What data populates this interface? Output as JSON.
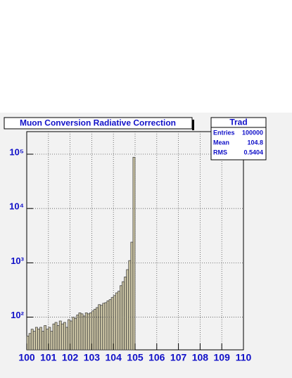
{
  "chart_data": {
    "type": "histogram",
    "title": "Muon Conversion Radiative Correction",
    "bins": [
      100.0,
      100.1,
      100.2,
      100.3,
      100.4,
      100.5,
      100.6,
      100.7,
      100.8,
      100.9,
      101.0,
      101.1,
      101.2,
      101.3,
      101.4,
      101.5,
      101.6,
      101.7,
      101.8,
      101.9,
      102.0,
      102.1,
      102.2,
      102.3,
      102.4,
      102.5,
      102.6,
      102.7,
      102.8,
      102.9,
      103.0,
      103.1,
      103.2,
      103.3,
      103.4,
      103.5,
      103.6,
      103.7,
      103.8,
      103.9,
      104.0,
      104.1,
      104.2,
      104.3,
      104.4,
      104.5,
      104.6,
      104.7,
      104.8,
      104.9,
      105.0
    ],
    "counts": [
      45,
      50,
      60,
      55,
      65,
      60,
      65,
      55,
      70,
      60,
      65,
      55,
      75,
      80,
      70,
      85,
      75,
      80,
      65,
      90,
      85,
      100,
      95,
      110,
      120,
      115,
      105,
      120,
      115,
      120,
      130,
      140,
      150,
      170,
      165,
      180,
      185,
      200,
      210,
      230,
      250,
      280,
      300,
      380,
      450,
      550,
      750,
      1100,
      2400,
      88000
    ],
    "color": "#cdc6a6",
    "xlim": [
      100,
      110
    ],
    "xticks": [
      100,
      101,
      102,
      103,
      104,
      105,
      106,
      107,
      108,
      109,
      110
    ],
    "ylim": [
      25,
      260000
    ],
    "yticks": [
      {
        "value": 100,
        "label": "10²"
      },
      {
        "value": 1000,
        "label": "10³"
      },
      {
        "value": 10000,
        "label": "10⁴"
      },
      {
        "value": 100000,
        "label": "10⁵"
      }
    ],
    "log_y": true,
    "grid": true,
    "stats": {
      "title": "Trad",
      "rows": [
        [
          "Entries",
          "100000"
        ],
        [
          "Mean",
          "104.8"
        ],
        [
          "RMS",
          "0.5404"
        ]
      ]
    }
  }
}
